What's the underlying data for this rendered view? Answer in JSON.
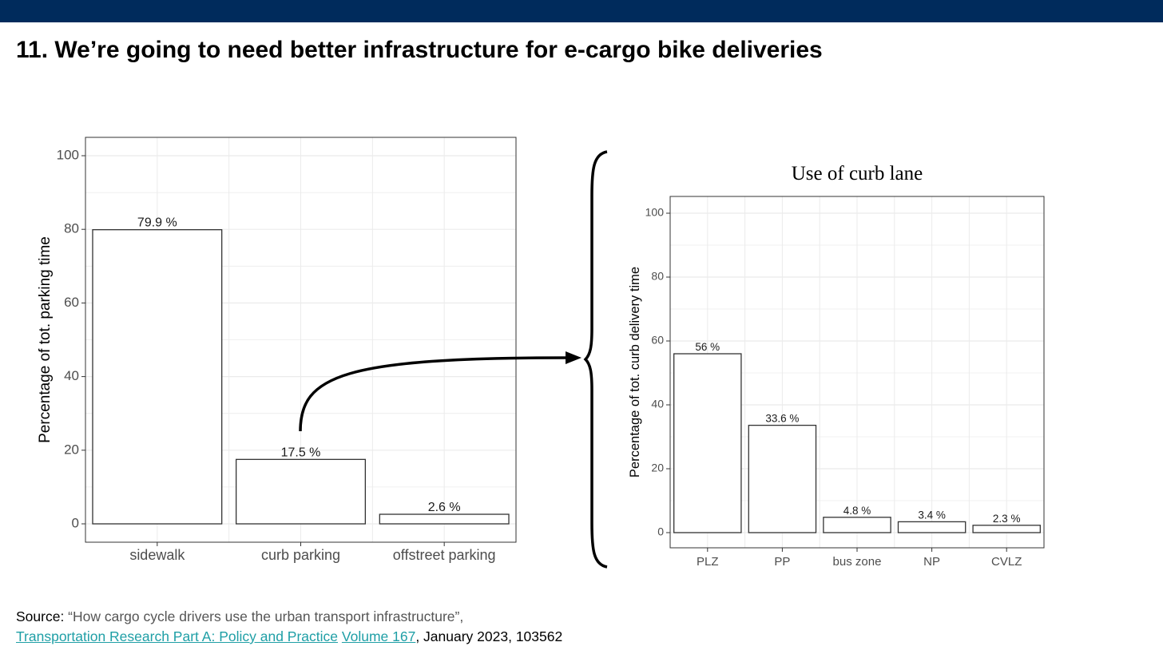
{
  "slide": {
    "title": "11. We’re going to need better infrastructure for e-cargo bike deliveries"
  },
  "chart_data": [
    {
      "type": "bar",
      "title": "",
      "xlabel": "",
      "ylabel": "Percentage of tot. parking time",
      "ylim": [
        0,
        100
      ],
      "yticks": [
        0,
        20,
        40,
        60,
        80,
        100
      ],
      "grid": true,
      "categories": [
        "sidewalk",
        "curb parking",
        "offstreet parking"
      ],
      "values": [
        79.9,
        17.5,
        2.6
      ],
      "data_labels": [
        "79.9 %",
        "17.5 %",
        "2.6 %"
      ]
    },
    {
      "type": "bar",
      "title": "Use of curb lane",
      "xlabel": "",
      "ylabel": "Percentage of tot. curb delivery time",
      "ylim": [
        0,
        100
      ],
      "yticks": [
        0,
        20,
        40,
        60,
        80,
        100
      ],
      "grid": true,
      "categories": [
        "PLZ",
        "PP",
        "bus zone",
        "NP",
        "CVLZ"
      ],
      "values": [
        56,
        33.6,
        4.8,
        3.4,
        2.3
      ],
      "data_labels": [
        "56 %",
        "33.6 %",
        "4.8 %",
        "3.4 %",
        "2.3 %"
      ]
    }
  ],
  "source": {
    "label": "Source:",
    "quote": " “How cargo cycle drivers use the urban transport infrastructure”, ",
    "journal_link": "Transportation Research Part A: Policy and Practice",
    "volume_link": "Volume 167",
    "tail": ", January 2023, 103562"
  },
  "colors": {
    "header_bar": "#002b5c",
    "link": "#1f9fa6",
    "bar_fill": "#ffffff",
    "bar_stroke": "#333333",
    "grid": "#ebebeb"
  }
}
